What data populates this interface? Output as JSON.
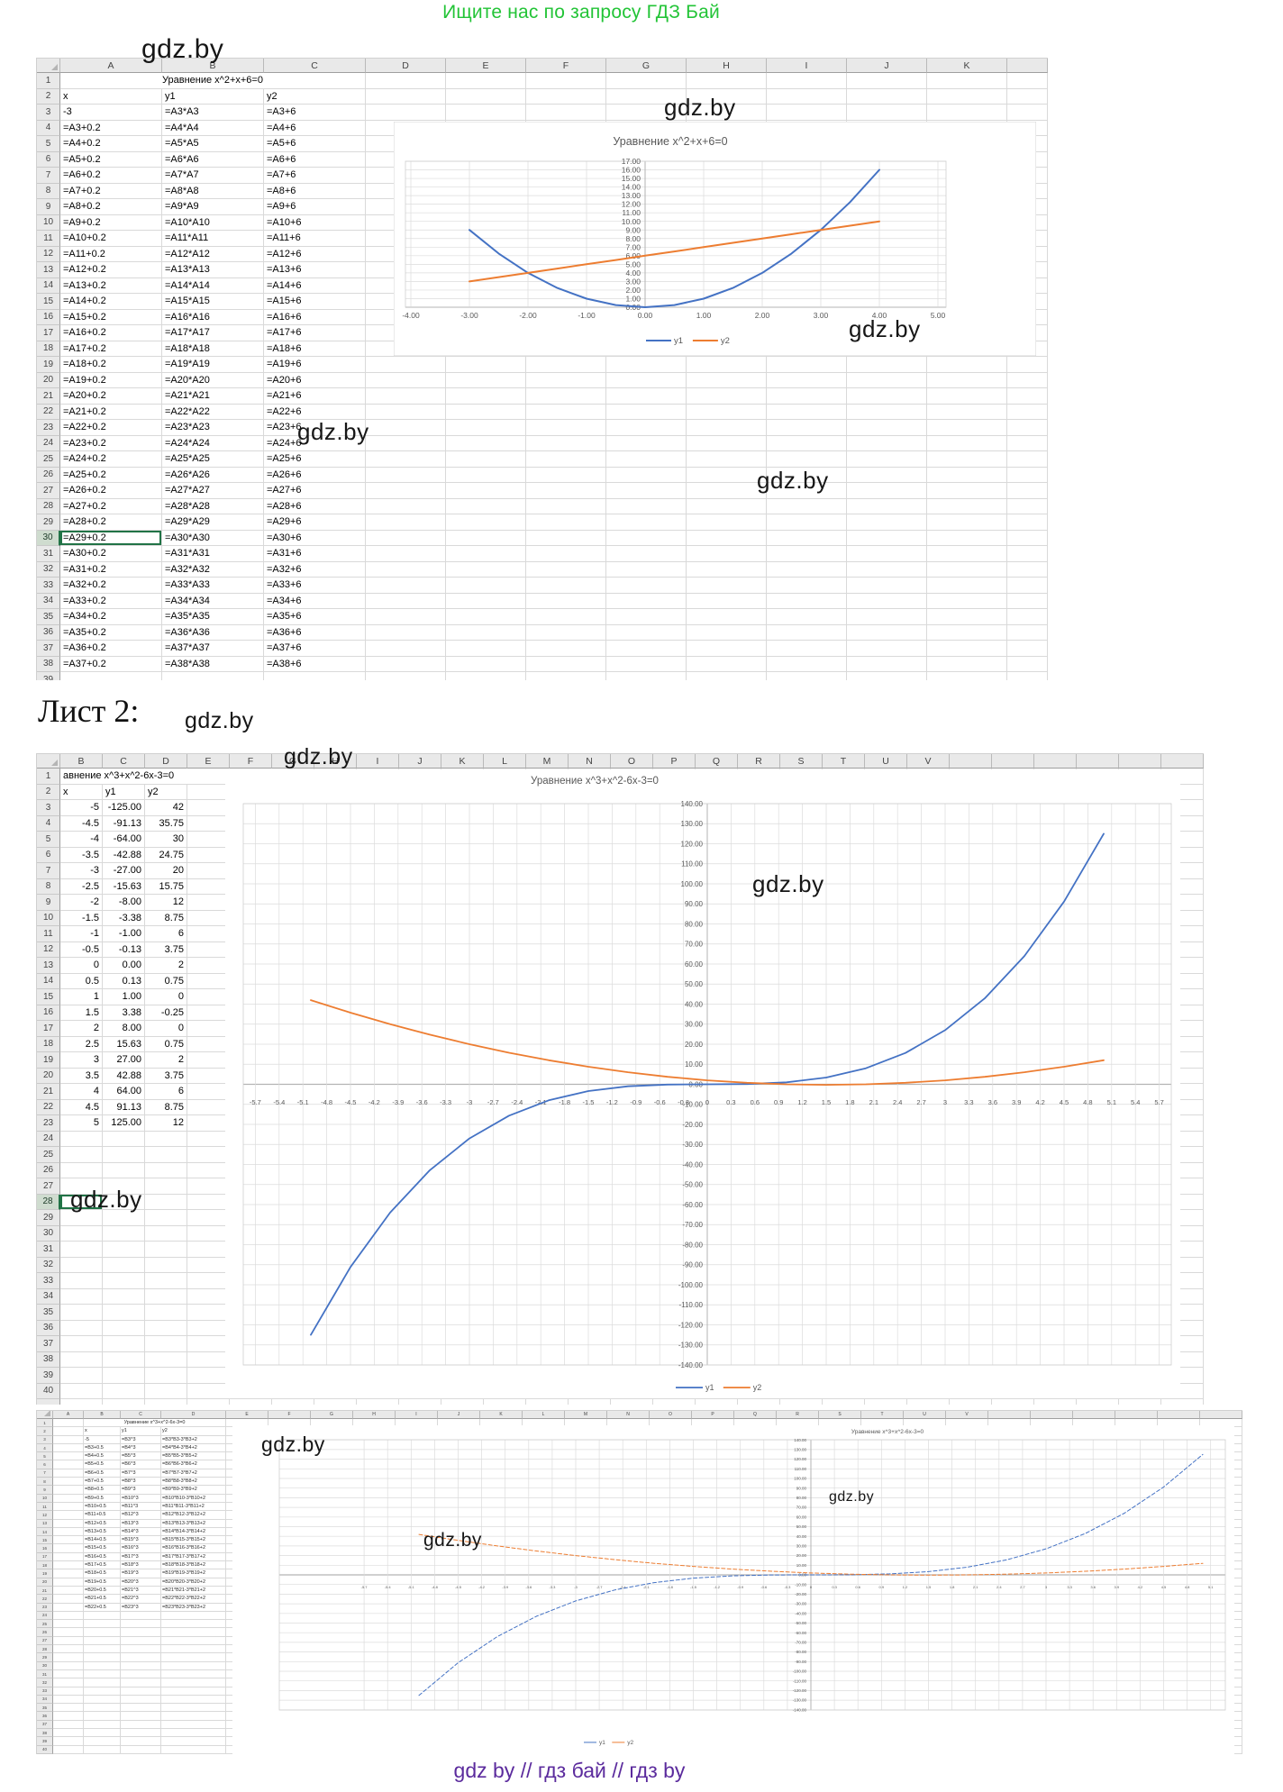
{
  "page": {
    "header_text": "Ищите нас по запросу ГДЗ Бай",
    "footer_text": "gdz by  //  гдз бай  //  гдз by",
    "sheet2_heading": "Лист 2:",
    "watermark_text": "gdz.by"
  },
  "colors": {
    "header_green": "#23c437",
    "footer_purple": "#5b2b9d",
    "series_y1": "#4472c4",
    "series_y2": "#ed7d31",
    "selection_green": "#217346",
    "grid_line": "#d9d9d9",
    "chart_text": "#595959"
  },
  "sheet1": {
    "title_row": "Уравнение x^2+x+6=0",
    "column_letters": [
      "A",
      "B",
      "C",
      "D",
      "E",
      "F",
      "G",
      "H",
      "I",
      "J",
      "K",
      ""
    ],
    "header_row": [
      "x",
      "y1",
      "y2"
    ],
    "selected_row": 30,
    "rows": [
      [
        "-3",
        "=A3*A3",
        "=A3+6"
      ],
      [
        "=A3+0.2",
        "=A4*A4",
        "=A4+6"
      ],
      [
        "=A4+0.2",
        "=A5*A5",
        "=A5+6"
      ],
      [
        "=A5+0.2",
        "=A6*A6",
        "=A6+6"
      ],
      [
        "=A6+0.2",
        "=A7*A7",
        "=A7+6"
      ],
      [
        "=A7+0.2",
        "=A8*A8",
        "=A8+6"
      ],
      [
        "=A8+0.2",
        "=A9*A9",
        "=A9+6"
      ],
      [
        "=A9+0.2",
        "=A10*A10",
        "=A10+6"
      ],
      [
        "=A10+0.2",
        "=A11*A11",
        "=A11+6"
      ],
      [
        "=A11+0.2",
        "=A12*A12",
        "=A12+6"
      ],
      [
        "=A12+0.2",
        "=A13*A13",
        "=A13+6"
      ],
      [
        "=A13+0.2",
        "=A14*A14",
        "=A14+6"
      ],
      [
        "=A14+0.2",
        "=A15*A15",
        "=A15+6"
      ],
      [
        "=A15+0.2",
        "=A16*A16",
        "=A16+6"
      ],
      [
        "=A16+0.2",
        "=A17*A17",
        "=A17+6"
      ],
      [
        "=A17+0.2",
        "=A18*A18",
        "=A18+6"
      ],
      [
        "=A18+0.2",
        "=A19*A19",
        "=A19+6"
      ],
      [
        "=A19+0.2",
        "=A20*A20",
        "=A20+6"
      ],
      [
        "=A20+0.2",
        "=A21*A21",
        "=A21+6"
      ],
      [
        "=A21+0.2",
        "=A22*A22",
        "=A22+6"
      ],
      [
        "=A22+0.2",
        "=A23*A23",
        "=A23+6"
      ],
      [
        "=A23+0.2",
        "=A24*A24",
        "=A24+6"
      ],
      [
        "=A24+0.2",
        "=A25*A25",
        "=A25+6"
      ],
      [
        "=A25+0.2",
        "=A26*A26",
        "=A26+6"
      ],
      [
        "=A26+0.2",
        "=A27*A27",
        "=A27+6"
      ],
      [
        "=A27+0.2",
        "=A28*A28",
        "=A28+6"
      ],
      [
        "=A28+0.2",
        "=A29*A29",
        "=A29+6"
      ],
      [
        "=A29+0.2",
        "=A30*A30",
        "=A30+6"
      ],
      [
        "=A30+0.2",
        "=A31*A31",
        "=A31+6"
      ],
      [
        "=A31+0.2",
        "=A32*A32",
        "=A32+6"
      ],
      [
        "=A32+0.2",
        "=A33*A33",
        "=A33+6"
      ],
      [
        "=A33+0.2",
        "=A34*A34",
        "=A34+6"
      ],
      [
        "=A34+0.2",
        "=A35*A35",
        "=A35+6"
      ],
      [
        "=A35+0.2",
        "=A36*A36",
        "=A36+6"
      ],
      [
        "=A36+0.2",
        "=A37*A37",
        "=A37+6"
      ],
      [
        "=A37+0.2",
        "=A38*A38",
        "=A38+6"
      ]
    ]
  },
  "sheet2": {
    "title_row": "авнение x^3+x^2-6x-3=0",
    "column_letters": [
      "B",
      "C",
      "D",
      "E",
      "F",
      "G",
      "H",
      "I",
      "J",
      "K",
      "L",
      "M",
      "N",
      "O",
      "P",
      "Q",
      "R",
      "S",
      "T",
      "U",
      "V",
      "",
      "",
      "",
      "",
      "",
      ""
    ],
    "header_row": [
      "x",
      "y1",
      "y2"
    ],
    "selected_row": 28,
    "rows": [
      [
        "-5",
        "-125.00",
        "42"
      ],
      [
        "-4.5",
        "-91.13",
        "35.75"
      ],
      [
        "-4",
        "-64.00",
        "30"
      ],
      [
        "-3.5",
        "-42.88",
        "24.75"
      ],
      [
        "-3",
        "-27.00",
        "20"
      ],
      [
        "-2.5",
        "-15.63",
        "15.75"
      ],
      [
        "-2",
        "-8.00",
        "12"
      ],
      [
        "-1.5",
        "-3.38",
        "8.75"
      ],
      [
        "-1",
        "-1.00",
        "6"
      ],
      [
        "-0.5",
        "-0.13",
        "3.75"
      ],
      [
        "0",
        "0.00",
        "2"
      ],
      [
        "0.5",
        "0.13",
        "0.75"
      ],
      [
        "1",
        "1.00",
        "0"
      ],
      [
        "1.5",
        "3.38",
        "-0.25"
      ],
      [
        "2",
        "8.00",
        "0"
      ],
      [
        "2.5",
        "15.63",
        "0.75"
      ],
      [
        "3",
        "27.00",
        "2"
      ],
      [
        "3.5",
        "42.88",
        "3.75"
      ],
      [
        "4",
        "64.00",
        "6"
      ],
      [
        "4.5",
        "91.13",
        "8.75"
      ],
      [
        "5",
        "125.00",
        "12"
      ]
    ]
  },
  "sheet3": {
    "title_row": "Уравнение x^3+x^2-6x-3=0",
    "column_letters": [
      "A",
      "B",
      "C",
      "D",
      "E",
      "F",
      "G",
      "H",
      "I",
      "J",
      "K",
      "L",
      "M",
      "N",
      "O",
      "P",
      "Q",
      "R",
      "S",
      "T",
      "U",
      "V",
      "",
      "",
      "",
      "",
      "",
      ""
    ],
    "header_row": [
      "x",
      "y1",
      "y2"
    ],
    "rows": [
      [
        "-5",
        "=B3^3",
        "=B3*B3-3*B3+2"
      ],
      [
        "=B3+0.5",
        "=B4^3",
        "=B4*B4-3*B4+2"
      ],
      [
        "=B4+0.5",
        "=B5^3",
        "=B5*B5-3*B5+2"
      ],
      [
        "=B5+0.5",
        "=B6^3",
        "=B6*B6-3*B6+2"
      ],
      [
        "=B6+0.5",
        "=B7^3",
        "=B7*B7-3*B7+2"
      ],
      [
        "=B7+0.5",
        "=B8^3",
        "=B8*B8-3*B8+2"
      ],
      [
        "=B8+0.5",
        "=B9^3",
        "=B9*B9-3*B9+2"
      ],
      [
        "=B9+0.5",
        "=B10^3",
        "=B10*B10-3*B10+2"
      ],
      [
        "=B10+0.5",
        "=B11^3",
        "=B11*B11-3*B11+2"
      ],
      [
        "=B11+0.5",
        "=B12^3",
        "=B12*B12-3*B12+2"
      ],
      [
        "=B12+0.5",
        "=B13^3",
        "=B13*B13-3*B13+2"
      ],
      [
        "=B13+0.5",
        "=B14^3",
        "=B14*B14-3*B14+2"
      ],
      [
        "=B14+0.5",
        "=B15^3",
        "=B15*B15-3*B15+2"
      ],
      [
        "=B15+0.5",
        "=B16^3",
        "=B16*B16-3*B16+2"
      ],
      [
        "=B16+0.5",
        "=B17^3",
        "=B17*B17-3*B17+2"
      ],
      [
        "=B17+0.5",
        "=B18^3",
        "=B18*B18-3*B18+2"
      ],
      [
        "=B18+0.5",
        "=B19^3",
        "=B19*B19-3*B19+2"
      ],
      [
        "=B19+0.5",
        "=B20^3",
        "=B20*B20-3*B20+2"
      ],
      [
        "=B20+0.5",
        "=B21^3",
        "=B21*B21-3*B21+2"
      ],
      [
        "=B21+0.5",
        "=B22^3",
        "=B22*B22-3*B22+2"
      ],
      [
        "=B22+0.5",
        "=B23^3",
        "=B23*B23-3*B23+2"
      ]
    ]
  },
  "chart_data": [
    {
      "type": "line",
      "title": "Уравнение x^2+x+6=0",
      "x": [
        -3,
        -2.5,
        -2,
        -1.5,
        -1,
        -0.5,
        0,
        0.5,
        1,
        1.5,
        2,
        2.5,
        3,
        3.5,
        4
      ],
      "series": [
        {
          "name": "y1",
          "values": [
            9,
            6.25,
            4,
            2.25,
            1,
            0.25,
            0,
            0.25,
            1,
            2.25,
            4,
            6.25,
            9,
            12.25,
            16
          ]
        },
        {
          "name": "y2",
          "values": [
            3,
            3.5,
            4,
            4.5,
            5,
            5.5,
            6,
            6.5,
            7,
            7.5,
            8,
            8.5,
            9,
            9.5,
            10
          ]
        }
      ],
      "xlim": [
        -4,
        5
      ],
      "ylim": [
        0,
        17
      ],
      "x_tick_step": 1,
      "y_tick_step": 1,
      "grid": true,
      "legend_position": "bottom"
    },
    {
      "type": "line",
      "title": "Уравнение x^3+x^2-6x-3=0",
      "x": [
        -5,
        -4.5,
        -4,
        -3.5,
        -3,
        -2.5,
        -2,
        -1.5,
        -1,
        -0.5,
        0,
        0.5,
        1,
        1.5,
        2,
        2.5,
        3,
        3.5,
        4,
        4.5,
        5
      ],
      "series": [
        {
          "name": "y1",
          "values": [
            -125,
            -91.13,
            -64,
            -42.88,
            -27,
            -15.63,
            -8,
            -3.38,
            -1,
            -0.13,
            0,
            0.13,
            1,
            3.38,
            8,
            15.63,
            27,
            42.88,
            64,
            91.13,
            125
          ]
        },
        {
          "name": "y2",
          "values": [
            42,
            35.75,
            30,
            24.75,
            20,
            15.75,
            12,
            8.75,
            6,
            3.75,
            2,
            0.75,
            0,
            -0.25,
            0,
            0.75,
            2,
            3.75,
            6,
            8.75,
            12
          ]
        }
      ],
      "xlim": [
        -5.7,
        5.7
      ],
      "ylim": [
        -140,
        140
      ],
      "x_tick_step": 0.3,
      "y_tick_step": 10,
      "grid": true,
      "legend_position": "bottom"
    },
    {
      "type": "line",
      "title": "Уравнение x^3+x^2-6x-3=0",
      "style": "dashed",
      "x": [
        -5,
        -4.5,
        -4,
        -3.5,
        -3,
        -2.5,
        -2,
        -1.5,
        -1,
        -0.5,
        0,
        0.5,
        1,
        1.5,
        2,
        2.5,
        3,
        3.5,
        4,
        4.5,
        5
      ],
      "series": [
        {
          "name": "y1",
          "values": [
            -125,
            -91.13,
            -64,
            -42.88,
            -27,
            -15.63,
            -8,
            -3.38,
            -1,
            -0.13,
            0,
            0.13,
            1,
            3.38,
            8,
            15.63,
            27,
            42.88,
            64,
            91.13,
            125
          ]
        },
        {
          "name": "y2",
          "values": [
            42,
            35.75,
            30,
            24.75,
            20,
            15.75,
            12,
            8.75,
            6,
            3.75,
            2,
            0.75,
            0,
            -0.25,
            0,
            0.75,
            2,
            3.75,
            6,
            8.75,
            12
          ]
        }
      ],
      "xlim": [
        -5.7,
        5.7
      ],
      "ylim": [
        -140,
        140
      ],
      "x_tick_step": 0.3,
      "y_tick_step": 10,
      "grid": true,
      "legend_position": "bottom"
    }
  ]
}
